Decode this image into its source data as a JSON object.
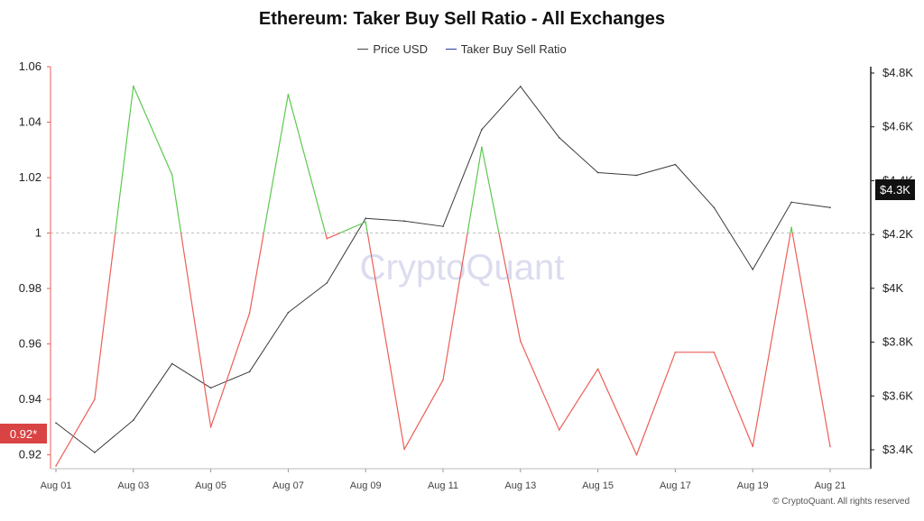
{
  "title": "Ethereum: Taker Buy Sell Ratio - All Exchanges",
  "legend": {
    "price_label": "Price USD",
    "ratio_label": "Taker Buy Sell Ratio"
  },
  "watermark": "CryptoQuant",
  "copyright": "© CryptoQuant. All rights reserved",
  "badges": {
    "ratio_current": "0.92*",
    "price_current": "$4.3K"
  },
  "colors": {
    "up": "#5cc94e",
    "down": "#ec5e57",
    "price": "#3a3a3a",
    "badge_red": "#d94343",
    "badge_dark": "#111111",
    "ratio_legend": "#2b3aa8"
  },
  "chart_data": {
    "type": "line",
    "title": "Ethereum: Taker Buy Sell Ratio - All Exchanges",
    "x": [
      "Aug 01",
      "Aug 02",
      "Aug 03",
      "Aug 04",
      "Aug 05",
      "Aug 06",
      "Aug 07",
      "Aug 08",
      "Aug 09",
      "Aug 10",
      "Aug 11",
      "Aug 12",
      "Aug 13",
      "Aug 14",
      "Aug 15",
      "Aug 16",
      "Aug 17",
      "Aug 18",
      "Aug 19",
      "Aug 20",
      "Aug 21"
    ],
    "x_tick_labels": [
      "Aug 01",
      "Aug 03",
      "Aug 05",
      "Aug 07",
      "Aug 09",
      "Aug 11",
      "Aug 13",
      "Aug 15",
      "Aug 17",
      "Aug 19",
      "Aug 21"
    ],
    "series": [
      {
        "name": "Taker Buy Sell Ratio",
        "axis": "left",
        "values": [
          0.916,
          0.94,
          1.053,
          1.021,
          0.93,
          0.971,
          1.05,
          0.998,
          1.004,
          0.922,
          0.947,
          1.031,
          0.961,
          0.929,
          0.951,
          0.92,
          0.957,
          0.957,
          0.923,
          1.002,
          0.923
        ]
      },
      {
        "name": "Price USD",
        "axis": "right",
        "values": [
          3500,
          3390,
          3510,
          3720,
          3630,
          3690,
          3910,
          4020,
          4260,
          4250,
          4230,
          4590,
          4750,
          4560,
          4430,
          4420,
          4460,
          4300,
          4070,
          4320,
          4300
        ]
      }
    ],
    "y_left": {
      "ticks": [
        0.92,
        0.94,
        0.96,
        0.98,
        1,
        1.02,
        1.04,
        1.06
      ],
      "tick_labels": [
        "0.92",
        "0.94",
        "0.96",
        "0.98",
        "1",
        "1.02",
        "1.04",
        "1.06"
      ],
      "range": [
        0.915,
        1.06
      ],
      "reference_line": 1
    },
    "y_right": {
      "ticks": [
        3400,
        3600,
        3800,
        4000,
        4200,
        4400,
        4600,
        4800
      ],
      "tick_labels": [
        "$3.4K",
        "$3.6K",
        "$3.8K",
        "$4K",
        "$4.2K",
        "$4.4K",
        "$4.6K",
        "$4.8K"
      ]
    },
    "grid": false,
    "legend_position": "top-center"
  }
}
